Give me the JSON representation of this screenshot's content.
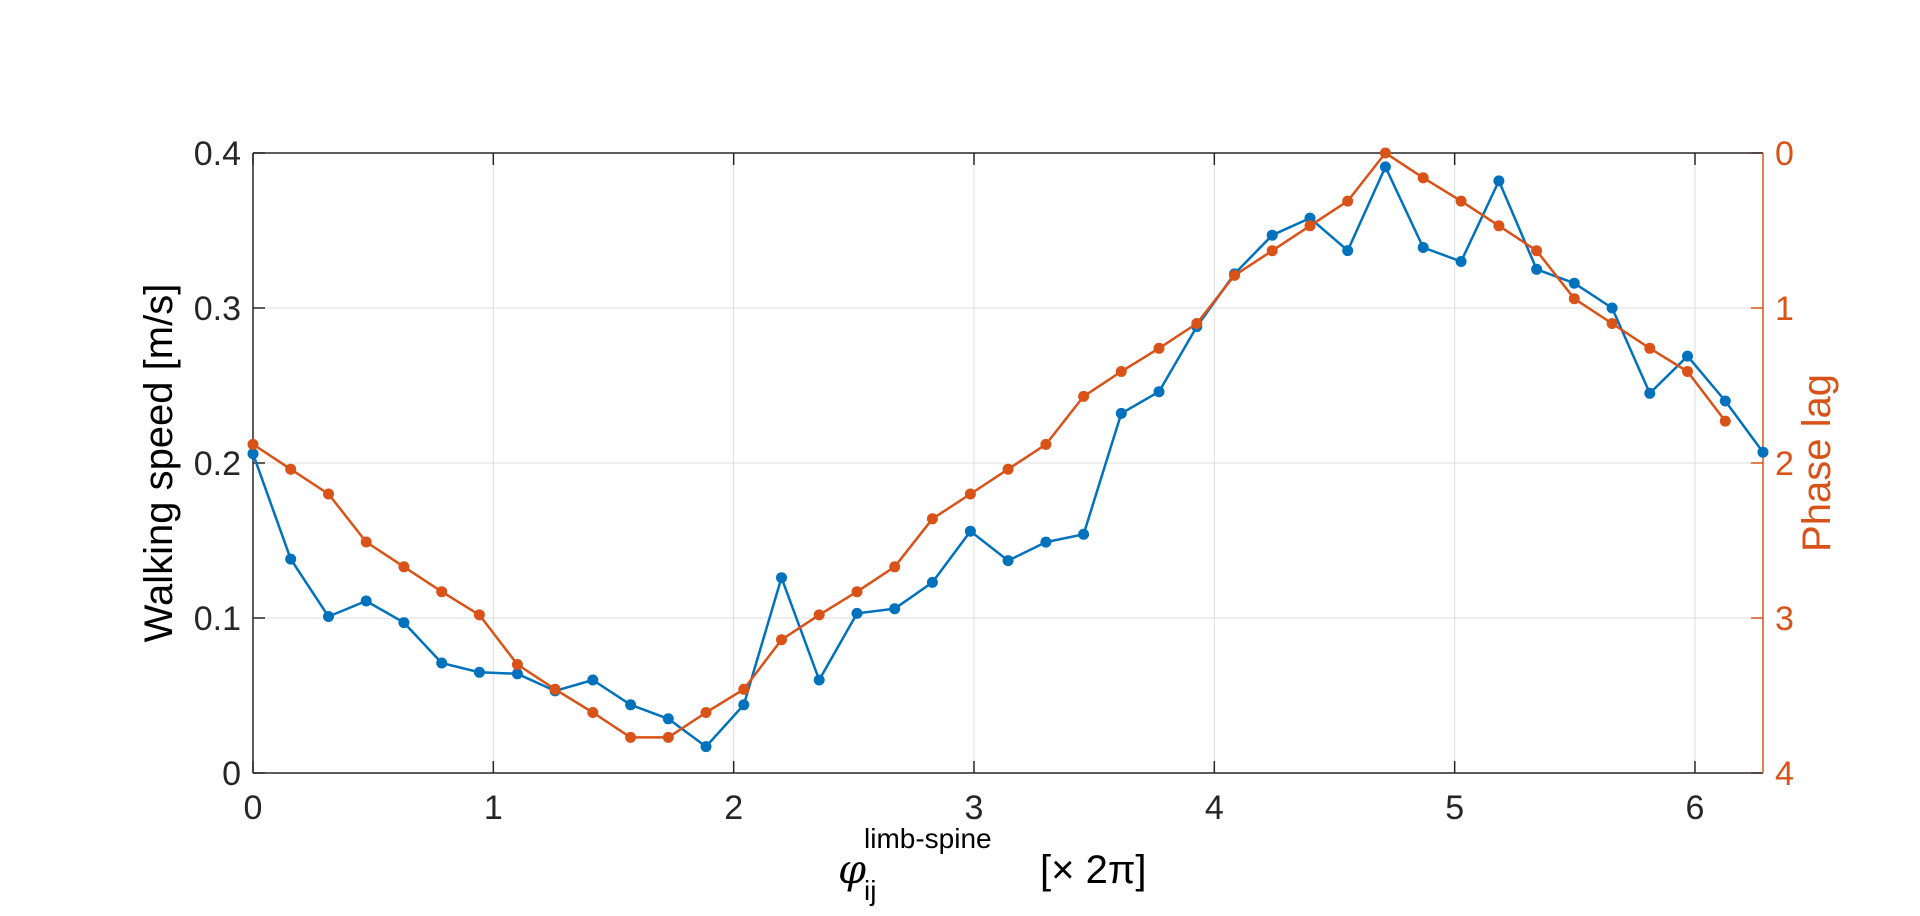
{
  "chart_data": {
    "type": "line",
    "grid": true,
    "xlabel": {
      "symbol": "φ",
      "subscript": "ij",
      "superscript": "limb-spine",
      "suffix": "[× 2π]"
    },
    "ylabel_left": "Walking speed [m/s]",
    "ylabel_right": "Phase lag",
    "xlim": [
      0,
      6.283
    ],
    "ylim_left": [
      0,
      0.4
    ],
    "ylim_right": [
      0,
      4
    ],
    "right_axis_reversed": true,
    "x_ticks": [
      "0",
      "1",
      "2",
      "3",
      "4",
      "5",
      "6"
    ],
    "y_ticks_left": [
      "0",
      "0.1",
      "0.2",
      "0.3",
      "0.4"
    ],
    "y_ticks_right": [
      "0",
      "1",
      "2",
      "3",
      "4"
    ],
    "colors": {
      "speed": "#0072BD",
      "phase": "#D95319",
      "axis": "#262626"
    },
    "series": [
      {
        "axis": "left",
        "color": "#0072BD",
        "x": [
          0,
          0.157,
          0.314,
          0.471,
          0.628,
          0.785,
          0.942,
          1.1,
          1.257,
          1.414,
          1.571,
          1.728,
          1.885,
          2.042,
          2.199,
          2.356,
          2.513,
          2.67,
          2.827,
          2.985,
          3.142,
          3.299,
          3.456,
          3.613,
          3.77,
          3.927,
          4.084,
          4.241,
          4.398,
          4.555,
          4.712,
          4.869,
          5.027,
          5.184,
          5.341,
          5.498,
          5.655,
          5.812,
          5.969,
          6.126,
          6.283
        ],
        "values": [
          0.206,
          0.138,
          0.101,
          0.111,
          0.097,
          0.071,
          0.065,
          0.064,
          0.053,
          0.06,
          0.044,
          0.035,
          0.017,
          0.044,
          0.126,
          0.06,
          0.103,
          0.106,
          0.123,
          0.156,
          0.137,
          0.149,
          0.154,
          0.232,
          0.246,
          0.288,
          0.322,
          0.347,
          0.358,
          0.337,
          0.391,
          0.339,
          0.33,
          0.382,
          0.325,
          0.316,
          0.3,
          0.245,
          0.269,
          0.24,
          0.207
        ]
      },
      {
        "axis": "right",
        "color": "#D95319",
        "x": [
          0,
          0.157,
          0.314,
          0.471,
          0.628,
          0.785,
          0.942,
          1.1,
          1.257,
          1.414,
          1.571,
          1.728,
          1.885,
          2.042,
          2.199,
          2.356,
          2.513,
          2.67,
          2.827,
          2.985,
          3.142,
          3.299,
          3.456,
          3.613,
          3.77,
          3.927,
          4.084,
          4.241,
          4.398,
          4.555,
          4.712,
          4.869,
          5.027,
          5.184,
          5.341,
          5.498,
          5.655,
          5.812,
          5.969,
          6.126
        ],
        "values": [
          1.88,
          2.04,
          2.2,
          2.51,
          2.67,
          2.83,
          2.98,
          3.3,
          3.46,
          3.61,
          3.77,
          3.77,
          3.61,
          3.46,
          3.14,
          2.98,
          2.83,
          2.67,
          2.36,
          2.2,
          2.04,
          1.88,
          1.57,
          1.41,
          1.26,
          1.1,
          0.79,
          0.63,
          0.47,
          0.31,
          0.0,
          0.16,
          0.31,
          0.47,
          0.63,
          0.94,
          1.1,
          1.26,
          1.41,
          1.73
        ]
      }
    ]
  }
}
